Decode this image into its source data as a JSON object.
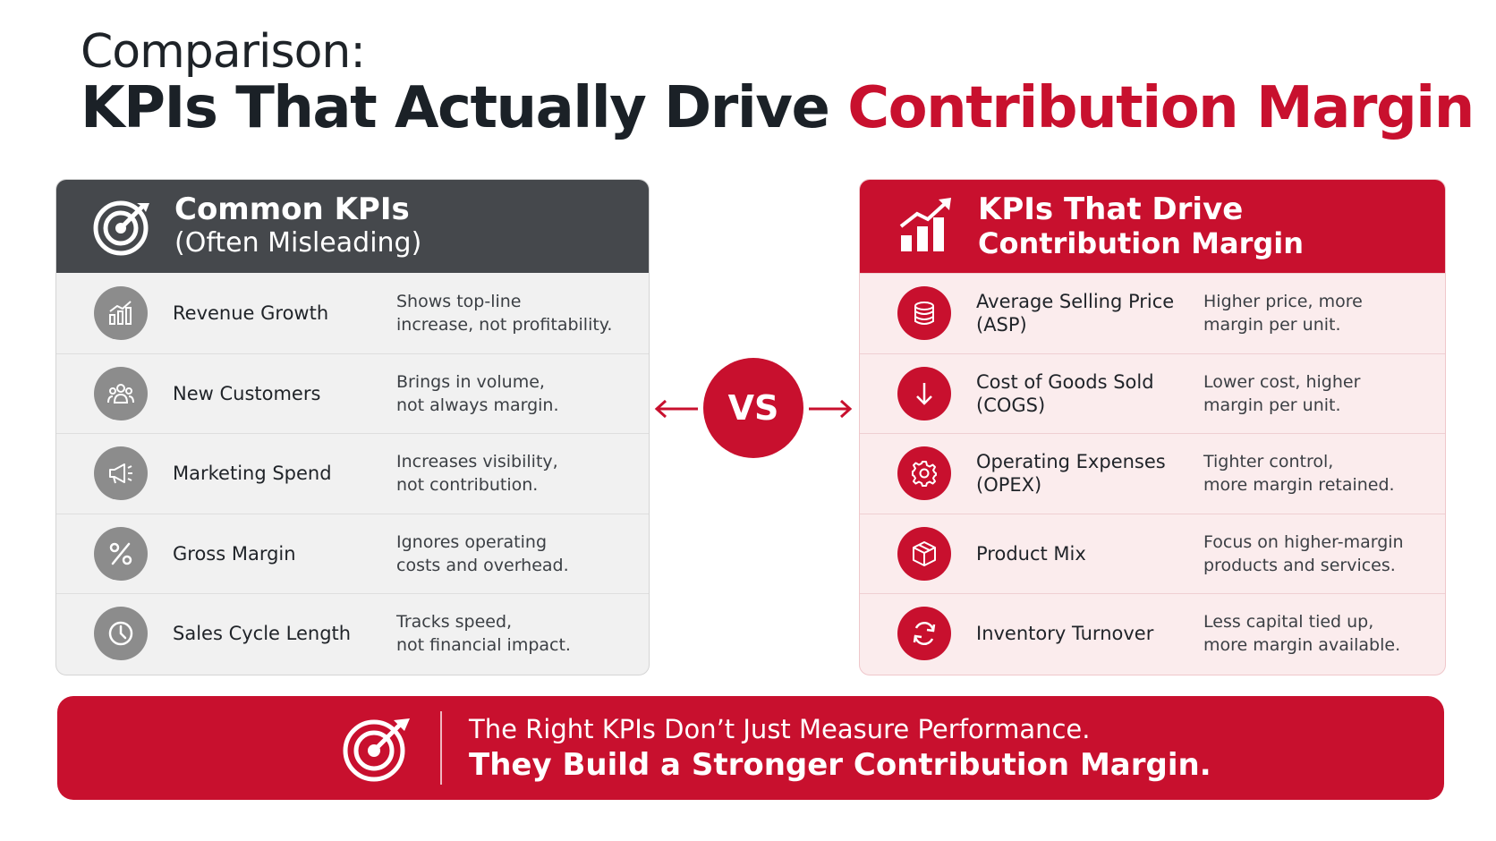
{
  "title": {
    "line1": "Comparison:",
    "line2_plain": "KPIs That Actually Drive ",
    "line2_accent": "Contribution Margin"
  },
  "left_panel": {
    "heading_line1": "Common KPIs",
    "heading_line2": "(Often Misleading)",
    "icon": "target-icon",
    "rows": [
      {
        "icon": "bar-chart-growth-icon",
        "label": "Revenue Growth",
        "desc": "Shows top-line\nincrease, not profitability."
      },
      {
        "icon": "people-group-icon",
        "label": "New Customers",
        "desc": "Brings in volume,\nnot always margin."
      },
      {
        "icon": "megaphone-icon",
        "label": "Marketing Spend",
        "desc": "Increases visibility,\nnot contribution."
      },
      {
        "icon": "percent-icon",
        "label": "Gross Margin",
        "desc": "Ignores operating\ncosts and overhead."
      },
      {
        "icon": "clock-icon",
        "label": "Sales Cycle Length",
        "desc": "Tracks speed,\nnot financial impact."
      }
    ]
  },
  "right_panel": {
    "heading_line1": "KPIs That Drive",
    "heading_line2": "Contribution Margin",
    "icon": "bar-chart-arrow-icon",
    "rows": [
      {
        "icon": "coin-stack-icon",
        "label": "Average Selling Price\n(ASP)",
        "desc": "Higher price, more\nmargin per unit."
      },
      {
        "icon": "arrow-down-icon",
        "label": "Cost of Goods Sold\n(COGS)",
        "desc": "Lower cost, higher\nmargin per unit."
      },
      {
        "icon": "gear-icon",
        "label": "Operating Expenses\n(OPEX)",
        "desc": "Tighter control,\nmore margin retained."
      },
      {
        "icon": "box-icon",
        "label": "Product Mix",
        "desc": "Focus on higher-margin\nproducts and services."
      },
      {
        "icon": "refresh-icon",
        "label": "Inventory Turnover",
        "desc": "Less capital tied up,\nmore margin available."
      }
    ]
  },
  "vs_label": "VS",
  "banner": {
    "line1": "The Right KPIs Don’t Just Measure Performance.",
    "line2": "They Build a Stronger Contribution Margin."
  },
  "colors": {
    "accent": "#c8102e",
    "dark": "#45484c",
    "grey_icon": "#8c8c8c"
  }
}
